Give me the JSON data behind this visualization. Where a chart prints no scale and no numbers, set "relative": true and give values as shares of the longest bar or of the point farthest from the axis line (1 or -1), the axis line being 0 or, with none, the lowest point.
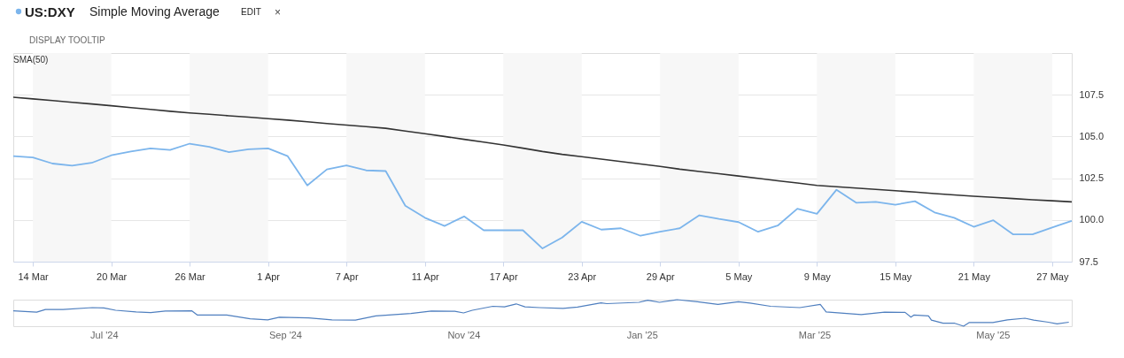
{
  "chart_data": [
    {
      "type": "line",
      "annotations": [
        "Simple Moving Average",
        "EDIT",
        "×",
        "DISPLAY TOOLTIP"
      ],
      "categories": [
        null,
        "14 Mar",
        null,
        null,
        null,
        "20 Mar",
        null,
        null,
        null,
        "26 Mar",
        null,
        null,
        null,
        "1 Apr",
        null,
        null,
        null,
        "7 Apr",
        null,
        null,
        null,
        "11 Apr",
        null,
        null,
        null,
        "17 Apr",
        null,
        null,
        null,
        "23 Apr",
        null,
        null,
        null,
        "29 Apr",
        null,
        null,
        null,
        "5 May",
        null,
        null,
        null,
        "9 May",
        null,
        null,
        null,
        "15 May",
        null,
        null,
        null,
        "21 May",
        null,
        null,
        null,
        "27 May",
        null
      ],
      "series": [
        {
          "name": "US:DXY",
          "color": "#7cb5ec",
          "values": [
            103.82,
            103.74,
            103.38,
            103.25,
            103.42,
            103.87,
            104.1,
            104.29,
            104.19,
            104.57,
            104.38,
            104.06,
            104.23,
            104.29,
            103.82,
            102.07,
            103.03,
            103.27,
            102.97,
            102.93,
            100.85,
            100.13,
            99.64,
            100.21,
            99.38,
            99.38,
            99.38,
            98.29,
            98.94,
            99.89,
            99.42,
            99.5,
            99.05,
            99.29,
            99.5,
            100.28,
            100.06,
            99.87,
            99.29,
            99.66,
            100.67,
            100.37,
            101.81,
            101.03,
            101.08,
            100.91,
            101.12,
            100.45,
            100.13,
            99.59,
            99.98,
            99.14,
            99.14,
            99.55,
            99.94
          ]
        },
        {
          "name": "SMA(50)",
          "color": "#333333",
          "values": [
            107.35,
            107.25,
            107.15,
            107.05,
            106.95,
            106.84,
            106.73,
            106.62,
            106.51,
            106.41,
            106.33,
            106.24,
            106.16,
            106.07,
            105.98,
            105.88,
            105.78,
            105.68,
            105.59,
            105.49,
            105.33,
            105.17,
            105.0,
            104.83,
            104.66,
            104.49,
            104.3,
            104.1,
            103.93,
            103.79,
            103.64,
            103.5,
            103.35,
            103.21,
            103.04,
            102.9,
            102.77,
            102.63,
            102.49,
            102.35,
            102.21,
            102.07,
            101.99,
            101.91,
            101.83,
            101.75,
            101.67,
            101.58,
            101.5,
            101.42,
            101.35,
            101.28,
            101.21,
            101.15,
            101.08
          ]
        }
      ],
      "ylim": [
        97.5,
        110
      ],
      "yticks": [
        97.5,
        {
          "value": 100,
          "label": "100.0"
        },
        102.5,
        {
          "value": 105,
          "label": "105.0"
        },
        107.5
      ],
      "grid": "y",
      "legend": "top left",
      "marker": "none",
      "line_style": "solid",
      "bands": [
        {
          "axis": "x",
          "from": "14 Mar",
          "to": "20 Mar",
          "color": "#f7f7f7"
        },
        {
          "axis": "x",
          "from": "26 Mar",
          "to": "1 Apr",
          "color": "#f7f7f7"
        },
        {
          "axis": "x",
          "from": "7 Apr",
          "to": "11 Apr",
          "color": "#f7f7f7"
        },
        {
          "axis": "x",
          "from": "17 Apr",
          "to": "23 Apr",
          "color": "#f7f7f7"
        },
        {
          "axis": "x",
          "from": "29 Apr",
          "to": "5 May",
          "color": "#f7f7f7"
        },
        {
          "axis": "x",
          "from": "9 May",
          "to": "15 May",
          "color": "#f7f7f7"
        },
        {
          "axis": "x",
          "from": "21 May",
          "to": "27 May",
          "color": "#f7f7f7"
        }
      ]
    },
    {
      "type": "line",
      "relative": true,
      "x": [
        "2024-05-31",
        "2024-06-08",
        "2024-06-11",
        "2024-06-17",
        "2024-06-27",
        "2024-07-01",
        "2024-07-05",
        "2024-07-12",
        "2024-07-17",
        "2024-07-22",
        "2024-07-31",
        "2024-08-02",
        "2024-08-12",
        "2024-08-20",
        "2024-08-26",
        "2024-08-30",
        "2024-09-09",
        "2024-09-17",
        "2024-09-25",
        "2024-10-02",
        "2024-10-14",
        "2024-10-21",
        "2024-10-29",
        "2024-11-01",
        "2024-11-04",
        "2024-11-11",
        "2024-11-15",
        "2024-11-19",
        "2024-11-22",
        "2024-11-27",
        "2024-12-05",
        "2024-12-10",
        "2024-12-18",
        "2024-12-20",
        "2024-12-31",
        "2025-01-03",
        "2025-01-07",
        "2025-01-13",
        "2025-01-20",
        "2025-01-27",
        "2025-02-03",
        "2025-02-07",
        "2025-02-14",
        "2025-02-24",
        "2025-03-03",
        "2025-03-05",
        "2025-03-13",
        "2025-03-17",
        "2025-03-25",
        "2025-04-01",
        "2025-04-03",
        "2025-04-04",
        "2025-04-09",
        "2025-04-10",
        "2025-04-14",
        "2025-04-18",
        "2025-04-21",
        "2025-04-23",
        "2025-05-01",
        "2025-05-06",
        "2025-05-12",
        "2025-05-15",
        "2025-05-20",
        "2025-05-23",
        "2025-05-27"
      ],
      "series": [
        {
          "color": "#4f7fbf",
          "values": [
            0.58,
            0.53,
            0.63,
            0.63,
            0.7,
            0.69,
            0.6,
            0.54,
            0.51,
            0.57,
            0.58,
            0.42,
            0.42,
            0.28,
            0.24,
            0.34,
            0.31,
            0.24,
            0.23,
            0.39,
            0.48,
            0.57,
            0.56,
            0.5,
            0.6,
            0.75,
            0.73,
            0.84,
            0.73,
            0.7,
            0.67,
            0.72,
            0.88,
            0.85,
            0.9,
            0.98,
            0.9,
            1.0,
            0.92,
            0.82,
            0.92,
            0.87,
            0.75,
            0.7,
            0.82,
            0.54,
            0.47,
            0.44,
            0.53,
            0.52,
            0.34,
            0.42,
            0.39,
            0.23,
            0.11,
            0.11,
            0.0,
            0.14,
            0.14,
            0.24,
            0.3,
            0.23,
            0.15,
            0.09,
            0.15
          ]
        }
      ],
      "xlim": [
        "2024-05-31",
        "2025-05-28"
      ],
      "xticks": [
        {
          "value": "2024-07-01",
          "label": "Jul '24"
        },
        {
          "value": "2024-09-01",
          "label": "Sep '24"
        },
        {
          "value": "2024-11-01",
          "label": "Nov '24"
        },
        {
          "value": "2025-01-01",
          "label": "Jan '25"
        },
        {
          "value": "2025-03-01",
          "label": "Mar '25"
        },
        {
          "value": "2025-05-01",
          "label": "May '25"
        }
      ],
      "tick_labels": "x"
    }
  ]
}
